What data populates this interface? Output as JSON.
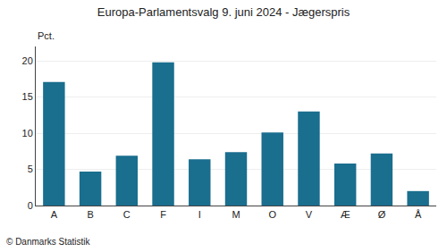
{
  "chart_data": {
    "type": "bar",
    "title": "Europa-Parlamentsvalg 9. juni 2024 - Jægerspris",
    "categories": [
      "A",
      "B",
      "C",
      "F",
      "I",
      "M",
      "O",
      "V",
      "Æ",
      "Ø",
      "Å"
    ],
    "values": [
      17.1,
      4.7,
      6.9,
      19.8,
      6.4,
      7.4,
      10.1,
      13.0,
      5.8,
      7.2,
      2.0
    ],
    "color": "#1a6e8e",
    "ylabel": "Pct.",
    "annotations": [
      "© Danmarks Statistik"
    ],
    "ylim": [
      0,
      22
    ],
    "yticks": [
      0,
      5,
      10,
      15,
      20
    ],
    "grid": true
  }
}
